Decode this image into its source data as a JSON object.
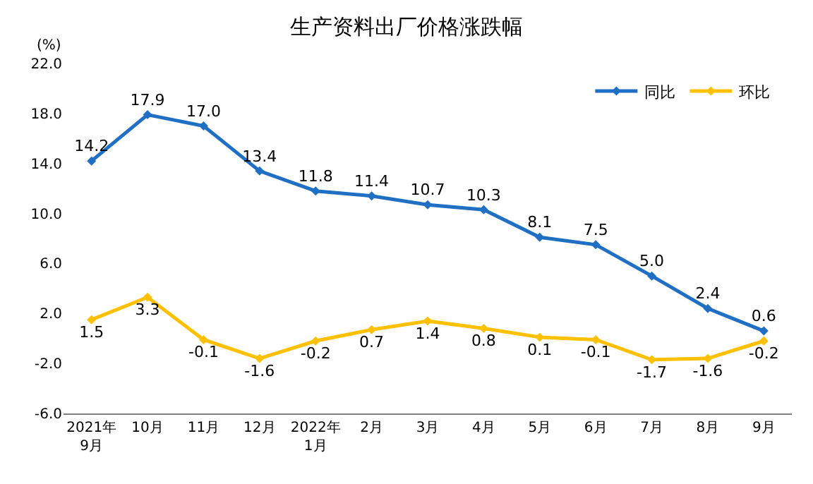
{
  "chart_data": {
    "type": "line",
    "title": "生产资料出厂价格涨跌幅",
    "ylabel": "(%)",
    "categories": [
      "2021年\n9月",
      "10月",
      "11月",
      "12月",
      "2022年\n1月",
      "2月",
      "3月",
      "4月",
      "5月",
      "6月",
      "7月",
      "8月",
      "9月"
    ],
    "series": [
      {
        "name": "同比",
        "color": "#1f6fc5",
        "values": [
          14.2,
          17.9,
          17.0,
          13.4,
          11.8,
          11.4,
          10.7,
          10.3,
          8.1,
          7.5,
          5.0,
          2.4,
          0.6
        ],
        "value_labels": [
          "14.2",
          "17.9",
          "17.0",
          "13.4",
          "11.8",
          "11.4",
          "10.7",
          "10.3",
          "8.1",
          "7.5",
          "5.0",
          "2.4",
          "0.6"
        ]
      },
      {
        "name": "环比",
        "color": "#ffc000",
        "values": [
          1.5,
          3.3,
          -0.1,
          -1.6,
          -0.2,
          0.7,
          1.4,
          0.8,
          0.1,
          -0.1,
          -1.7,
          -1.6,
          -0.2
        ],
        "value_labels": [
          "1.5",
          "3.3",
          "-0.1",
          "-1.6",
          "-0.2",
          "0.7",
          "1.4",
          "0.8",
          "0.1",
          "-0.1",
          "-1.7",
          "-1.6",
          "-0.2"
        ]
      }
    ],
    "ylim": [
      -6,
      22
    ],
    "yticks": [
      {
        "value": -6,
        "label": "-6.0"
      },
      {
        "value": -2,
        "label": "-2.0"
      },
      {
        "value": 2,
        "label": "2.0"
      },
      {
        "value": 6,
        "label": "6.0"
      },
      {
        "value": 10,
        "label": "10.0"
      },
      {
        "value": 14,
        "label": "14.0"
      },
      {
        "value": 18,
        "label": "18.0"
      },
      {
        "value": 22,
        "label": "22.0"
      }
    ],
    "grid": false,
    "legend": "top right",
    "marker": "diamond",
    "line_style": "solid"
  }
}
